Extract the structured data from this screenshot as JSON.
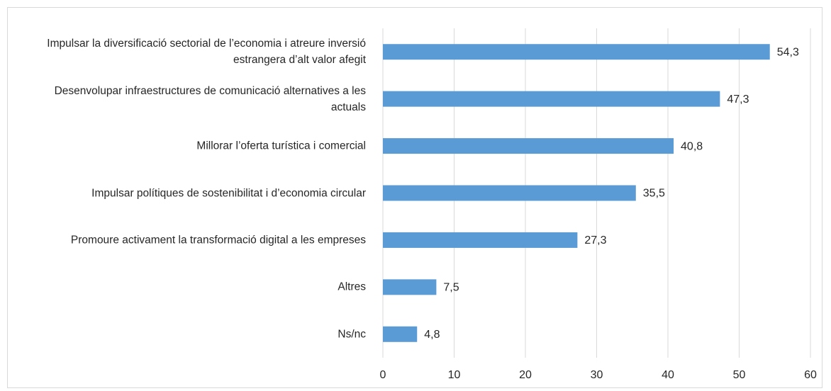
{
  "chart_data": {
    "type": "bar",
    "orientation": "horizontal",
    "categories": [
      "Impulsar la diversificació sectorial de l’economia i atreure inversió estrangera d’alt valor afegit",
      "Desenvolupar infraestructures de comunicació alternatives a les actuals",
      "Millorar l’oferta turística i comercial",
      "Impulsar polítiques de sostenibilitat i d’economia circular",
      "Promoure activament la transformació digital a les empreses",
      "Altres",
      "Ns/nc"
    ],
    "values": [
      54.3,
      47.3,
      40.8,
      35.5,
      27.3,
      7.5,
      4.8
    ],
    "value_labels": [
      "54,3",
      "47,3",
      "40,8",
      "35,5",
      "27,3",
      "7,5",
      "4,8"
    ],
    "color": "#5b9bd5",
    "xlim": [
      0,
      60
    ],
    "xticks": [
      0,
      10,
      20,
      30,
      40,
      50,
      60
    ],
    "grid": true
  }
}
